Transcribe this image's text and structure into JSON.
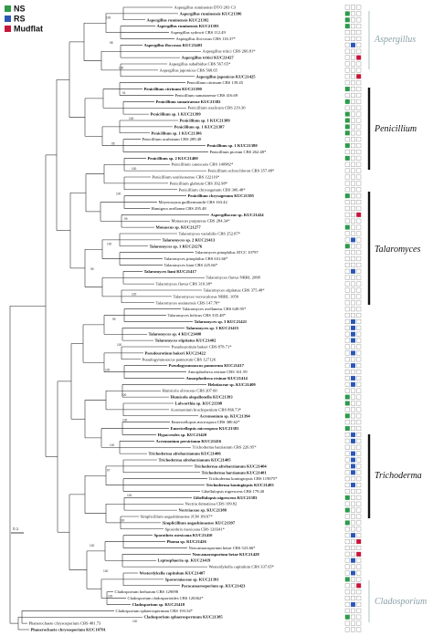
{
  "legend": [
    {
      "label": "NS",
      "color": "#2e9a4a"
    },
    {
      "label": "RS",
      "color": "#2a57b3"
    },
    {
      "label": "Mudflat",
      "color": "#c8153a"
    }
  ],
  "scale_bar_label": "0.1",
  "clades": [
    {
      "name": "Aspergillus",
      "style": "grey"
    },
    {
      "name": "Penicillium",
      "style": "bar"
    },
    {
      "name": "Talaromyces",
      "style": "bar"
    },
    {
      "name": "Trichoderma",
      "style": "bar"
    },
    {
      "name": "Cladosporium",
      "style": "grey"
    }
  ],
  "taxa": [
    {
      "label": "Aspergillus ruminensis DTO 203 C3",
      "bold": false,
      "boxes": [
        0,
        0,
        0
      ]
    },
    {
      "label": "Aspergillus ruminensis KUC21396",
      "bold": true,
      "boxes": [
        1,
        0,
        0
      ]
    },
    {
      "label": "Aspergillus ruminensis KUC21392",
      "bold": true,
      "boxes": [
        1,
        0,
        0
      ]
    },
    {
      "label": "Aspergillus ruminensis KUC21393",
      "bold": true,
      "boxes": [
        1,
        0,
        0
      ]
    },
    {
      "label": "Aspergillus sydowii CBS 112.49",
      "bold": false,
      "boxes": [
        0,
        0,
        0
      ]
    },
    {
      "label": "Aspergillus floccosus CBS 116.37*",
      "bold": false,
      "boxes": [
        0,
        0,
        0
      ]
    },
    {
      "label": "Aspergillus floccosus KUC21403",
      "bold": true,
      "boxes": [
        0,
        1,
        0
      ]
    },
    {
      "label": "Aspergillus tritici CBS 266.81*",
      "bold": false,
      "boxes": [
        0,
        0,
        0
      ]
    },
    {
      "label": "Aspergillus tritici KUC21427",
      "bold": true,
      "boxes": [
        0,
        0,
        1
      ]
    },
    {
      "label": "Aspergillus subalbidus CBS 567.65*",
      "bold": false,
      "boxes": [
        0,
        0,
        0
      ]
    },
    {
      "label": "Aspergillus japonicus CBS 568.65",
      "bold": false,
      "boxes": [
        0,
        0,
        0
      ]
    },
    {
      "label": "Aspergillus japonicus KUC21425",
      "bold": true,
      "boxes": [
        0,
        0,
        1
      ]
    },
    {
      "label": "Penicillium citrinum CBS 139.45",
      "bold": false,
      "boxes": [
        0,
        0,
        0
      ]
    },
    {
      "label": "Penicillium citrinum KUC21390",
      "bold": true,
      "boxes": [
        1,
        0,
        0
      ]
    },
    {
      "label": "Penicillium sumatraense CBS 416.69",
      "bold": false,
      "boxes": [
        0,
        0,
        0
      ]
    },
    {
      "label": "Penicillium sumatraense KUC21382",
      "bold": true,
      "boxes": [
        1,
        0,
        0
      ]
    },
    {
      "label": "Penicillium oxalicum CBS 219.30",
      "bold": false,
      "boxes": [
        0,
        0,
        0
      ]
    },
    {
      "label": "Penicillium sp. 1 KUC21399",
      "bold": true,
      "boxes": [
        1,
        0,
        0
      ]
    },
    {
      "label": "Penicillium sp. 1 KUC21389",
      "bold": true,
      "boxes": [
        1,
        0,
        0
      ]
    },
    {
      "label": "Penicillium sp. 1 KUC21387",
      "bold": true,
      "boxes": [
        1,
        0,
        0
      ]
    },
    {
      "label": "Penicillium sp. 1 KUC21386",
      "bold": true,
      "boxes": [
        1,
        0,
        0
      ]
    },
    {
      "label": "Penicillium aculeatum CBS 289.48",
      "bold": false,
      "boxes": [
        0,
        0,
        0
      ]
    },
    {
      "label": "Penicillium sp. 1 KUC21380",
      "bold": true,
      "boxes": [
        1,
        0,
        0
      ]
    },
    {
      "label": "Penicillium piceum CBS 262.48*",
      "bold": false,
      "boxes": [
        0,
        0,
        0
      ]
    },
    {
      "label": "Penicillium sp. 2 KUC21400",
      "bold": true,
      "boxes": [
        1,
        0,
        0
      ]
    },
    {
      "label": "Penicillium canescens CBS 140982*",
      "bold": false,
      "boxes": [
        0,
        0,
        0
      ]
    },
    {
      "label": "Penicillium ochrochloron CBS 357.48*",
      "bold": false,
      "boxes": [
        0,
        0,
        0
      ]
    },
    {
      "label": "Penicillium soufriereense CBS 122116*",
      "bold": false,
      "boxes": [
        0,
        0,
        0
      ]
    },
    {
      "label": "Penicillium glabrum CBS 392.98*",
      "bold": false,
      "boxes": [
        0,
        0,
        0
      ]
    },
    {
      "label": "Penicillium chrysogenum CBS 306.48*",
      "bold": false,
      "boxes": [
        0,
        0,
        0
      ]
    },
    {
      "label": "Penicillium chrysogenum KUC21395",
      "bold": true,
      "boxes": [
        1,
        0,
        0
      ]
    },
    {
      "label": "Meyerozyma guilliermondii CBS 163.42",
      "bold": false,
      "boxes": [
        0,
        0,
        0
      ]
    },
    {
      "label": "Hamigera avellanea CBS 295.48",
      "bold": false,
      "boxes": [
        0,
        0,
        0
      ]
    },
    {
      "label": "Aspergillaceae sp. KUC21424",
      "bold": true,
      "boxes": [
        0,
        0,
        1
      ]
    },
    {
      "label": "Monascus purpureus CBS 284.34*",
      "bold": false,
      "boxes": [
        0,
        0,
        0
      ]
    },
    {
      "label": "Monascus sp. KUC21277",
      "bold": true,
      "boxes": [
        1,
        0,
        0
      ]
    },
    {
      "label": "Talaromyces variabilis CBS 252.87*",
      "bold": false,
      "boxes": [
        0,
        0,
        0
      ]
    },
    {
      "label": "Talaromyces sp. 2 KUC21413",
      "bold": true,
      "boxes": [
        0,
        1,
        0
      ]
    },
    {
      "label": "Talaromyces sp. 1 KUC21276",
      "bold": true,
      "boxes": [
        1,
        0,
        0
      ]
    },
    {
      "label": "Talaromyces pinophilus ATCC 10797",
      "bold": false,
      "boxes": [
        0,
        0,
        0
      ]
    },
    {
      "label": "Talaromyces pinophilus CBS 631.66*",
      "bold": false,
      "boxes": [
        0,
        0,
        0
      ]
    },
    {
      "label": "Talaromyces liani CBS 225.66*",
      "bold": false,
      "boxes": [
        0,
        0,
        0
      ]
    },
    {
      "label": "Talaromyces liani KUC21417",
      "bold": true,
      "boxes": [
        0,
        1,
        0
      ]
    },
    {
      "label": "Talaromyces flavus NRRL 2098",
      "bold": false,
      "boxes": [
        0,
        0,
        0
      ]
    },
    {
      "label": "Talaromyces flavus CBS 310.38*",
      "bold": false,
      "boxes": [
        0,
        0,
        0
      ]
    },
    {
      "label": "Talaromyces stipitatus CBS 375.48*",
      "bold": false,
      "boxes": [
        0,
        0,
        0
      ]
    },
    {
      "label": "Talaromyces verruculosus NRRL 1050",
      "bold": false,
      "boxes": [
        0,
        0,
        0
      ]
    },
    {
      "label": "Talaromyces assiutensis CBS 147.78*",
      "bold": false,
      "boxes": [
        0,
        0,
        0
      ]
    },
    {
      "label": "Talaromyces avellaneus CBS 649.95*",
      "bold": false,
      "boxes": [
        0,
        0,
        0
      ]
    },
    {
      "label": "Talaromyces helicus CBS 335.48*",
      "bold": false,
      "boxes": [
        0,
        0,
        0
      ]
    },
    {
      "label": "Talaromyces sp. 3 KUC21421",
      "bold": true,
      "boxes": [
        0,
        1,
        0
      ]
    },
    {
      "label": "Talaromyces sp. 3 KUC21415",
      "bold": true,
      "boxes": [
        0,
        1,
        0
      ]
    },
    {
      "label": "Talaromyces sp. 4 KUC21408",
      "bold": true,
      "boxes": [
        0,
        1,
        0
      ]
    },
    {
      "label": "Talaromyces stipitatus KUC21402",
      "bold": true,
      "boxes": [
        0,
        1,
        0
      ]
    },
    {
      "label": "Pseudeurotium bakeri CBS 878.71*",
      "bold": false,
      "boxes": [
        0,
        0,
        0
      ]
    },
    {
      "label": "Pseudeurotium bakeri KUC21422",
      "bold": true,
      "boxes": [
        0,
        1,
        0
      ]
    },
    {
      "label": "Pseudogymnoascus pannorum CBS 127126",
      "bold": false,
      "boxes": [
        0,
        0,
        0
      ]
    },
    {
      "label": "Pseudogymnoascus pannorum KUC21417",
      "bold": true,
      "boxes": [
        0,
        1,
        0
      ]
    },
    {
      "label": "Amorphotheca resinae CBS 161.59",
      "bold": false,
      "boxes": [
        0,
        0,
        0
      ]
    },
    {
      "label": "Amorphotheca resinae KUC21414",
      "bold": true,
      "boxes": [
        0,
        1,
        0
      ]
    },
    {
      "label": "Helotiaceae sp. KUC21409",
      "bold": true,
      "boxes": [
        0,
        1,
        0
      ]
    },
    {
      "label": "Humicola olivaceus CBS 207.60",
      "bold": false,
      "boxes": [
        0,
        0,
        0
      ]
    },
    {
      "label": "Humicola alopallonella KUC21393",
      "bold": true,
      "boxes": [
        1,
        0,
        0
      ]
    },
    {
      "label": "Lulworthia sp. KUC21398",
      "bold": true,
      "boxes": [
        1,
        0,
        0
      ]
    },
    {
      "label": "Acremonium brachypenium CBS 866.73*",
      "bold": false,
      "boxes": [
        0,
        0,
        0
      ]
    },
    {
      "label": "Acremonium sp. KUC21394",
      "bold": true,
      "boxes": [
        1,
        0,
        0
      ]
    },
    {
      "label": "Emericellopsis microspora CBS 380.62*",
      "bold": false,
      "boxes": [
        0,
        0,
        0
      ]
    },
    {
      "label": "Emericellopsis microspora KUC21381",
      "bold": true,
      "boxes": [
        1,
        0,
        0
      ]
    },
    {
      "label": "Hypocreales sp. KUC21420",
      "bold": true,
      "boxes": [
        0,
        1,
        0
      ]
    },
    {
      "label": "Acremonium persicinum KUC21416",
      "bold": true,
      "boxes": [
        0,
        1,
        0
      ]
    },
    {
      "label": "Trichoderma harzianum CBS 226.95*",
      "bold": false,
      "boxes": [
        0,
        0,
        0
      ]
    },
    {
      "label": "Trichoderma afroharzianum KUC21406",
      "bold": true,
      "boxes": [
        0,
        1,
        0
      ]
    },
    {
      "label": "Trichoderma afroharzianum KUC21405",
      "bold": true,
      "boxes": [
        0,
        1,
        0
      ]
    },
    {
      "label": "Trichoderma afroharzianum KUC21404",
      "bold": true,
      "boxes": [
        0,
        1,
        0
      ]
    },
    {
      "label": "Trichoderma harzianum KUC21401",
      "bold": true,
      "boxes": [
        0,
        1,
        0
      ]
    },
    {
      "label": "Trichoderma koningiopsis CBS 119075*",
      "bold": false,
      "boxes": [
        0,
        0,
        0
      ]
    },
    {
      "label": "Trichoderma koningiopsis KUC21403",
      "bold": true,
      "boxes": [
        0,
        1,
        0
      ]
    },
    {
      "label": "Gibellulopsis nigrescens CBS 179.40",
      "bold": false,
      "boxes": [
        0,
        0,
        0
      ]
    },
    {
      "label": "Gibellulopsis nigrescens KUC21383",
      "bold": true,
      "boxes": [
        1,
        0,
        0
      ]
    },
    {
      "label": "Nectria dematiosa CBS 109.82",
      "bold": false,
      "boxes": [
        0,
        0,
        0
      ]
    },
    {
      "label": "Nectriaceae sp. KUC21388",
      "bold": true,
      "boxes": [
        1,
        0,
        0
      ]
    },
    {
      "label": "Simplicillium aogashimaense JCM 18167*",
      "bold": false,
      "boxes": [
        0,
        0,
        0
      ]
    },
    {
      "label": "Simplicillium aogashimaense KUC21397",
      "bold": true,
      "boxes": [
        1,
        0,
        0
      ]
    },
    {
      "label": "Sporothrix mexicana CBS 120341*",
      "bold": false,
      "boxes": [
        0,
        0,
        0
      ]
    },
    {
      "label": "Sporothrix mexicana KUC21410",
      "bold": true,
      "boxes": [
        0,
        1,
        0
      ]
    },
    {
      "label": "Phoma sp. KUC21426",
      "bold": true,
      "boxes": [
        0,
        0,
        1
      ]
    },
    {
      "label": "Neocamarosporium betae CBS 523.66*",
      "bold": false,
      "boxes": [
        0,
        0,
        0
      ]
    },
    {
      "label": "Neocamarosporium betae KUC21428",
      "bold": true,
      "boxes": [
        0,
        0,
        1
      ]
    },
    {
      "label": "Leptosphaeria sp. KUC21419",
      "bold": true,
      "boxes": [
        0,
        1,
        0
      ]
    },
    {
      "label": "Westerdykella capitulum CBS 337.65*",
      "bold": false,
      "boxes": [
        0,
        0,
        0
      ]
    },
    {
      "label": "Westerdykella capitulum KUC21407",
      "bold": true,
      "boxes": [
        0,
        1,
        0
      ]
    },
    {
      "label": "Sporormiaceae sp. KUC21391",
      "bold": true,
      "boxes": [
        1,
        0,
        0
      ]
    },
    {
      "label": "Paracamarosporium sp. KUC21423",
      "bold": true,
      "boxes": [
        0,
        0,
        1
      ]
    },
    {
      "label": "Cladosporium herbarum CBS 129098",
      "bold": false,
      "boxes": [
        0,
        0,
        0
      ]
    },
    {
      "label": "Cladosporium cladosporioides CBS 126362*",
      "bold": false,
      "boxes": [
        0,
        0,
        0
      ]
    },
    {
      "label": "Cladosporium sp. KUC21418",
      "bold": true,
      "boxes": [
        0,
        1,
        0
      ]
    },
    {
      "label": "Cladosporium sphaerospermum CBS 193.54*",
      "bold": false,
      "boxes": [
        0,
        0,
        0
      ]
    },
    {
      "label": "Cladosporium sphaerospermum KUC21385",
      "bold": true,
      "boxes": [
        1,
        0,
        0
      ]
    },
    {
      "label": "Phanerochaete chrysosporium CBS 481.73",
      "bold": false,
      "boxes": [
        0,
        0,
        0
      ]
    },
    {
      "label": "Phanerochaete chrysosporium KUC10791",
      "bold": true,
      "boxes": [
        0,
        0,
        0
      ]
    }
  ],
  "support_values": [
    "100",
    "98",
    "100",
    "91",
    "100",
    "95",
    "100",
    "100",
    "99",
    "100",
    "95",
    "100",
    "99",
    "100",
    "100",
    "100",
    "100",
    "100",
    "97",
    "100",
    "100",
    "100",
    "100",
    "100",
    "100"
  ]
}
